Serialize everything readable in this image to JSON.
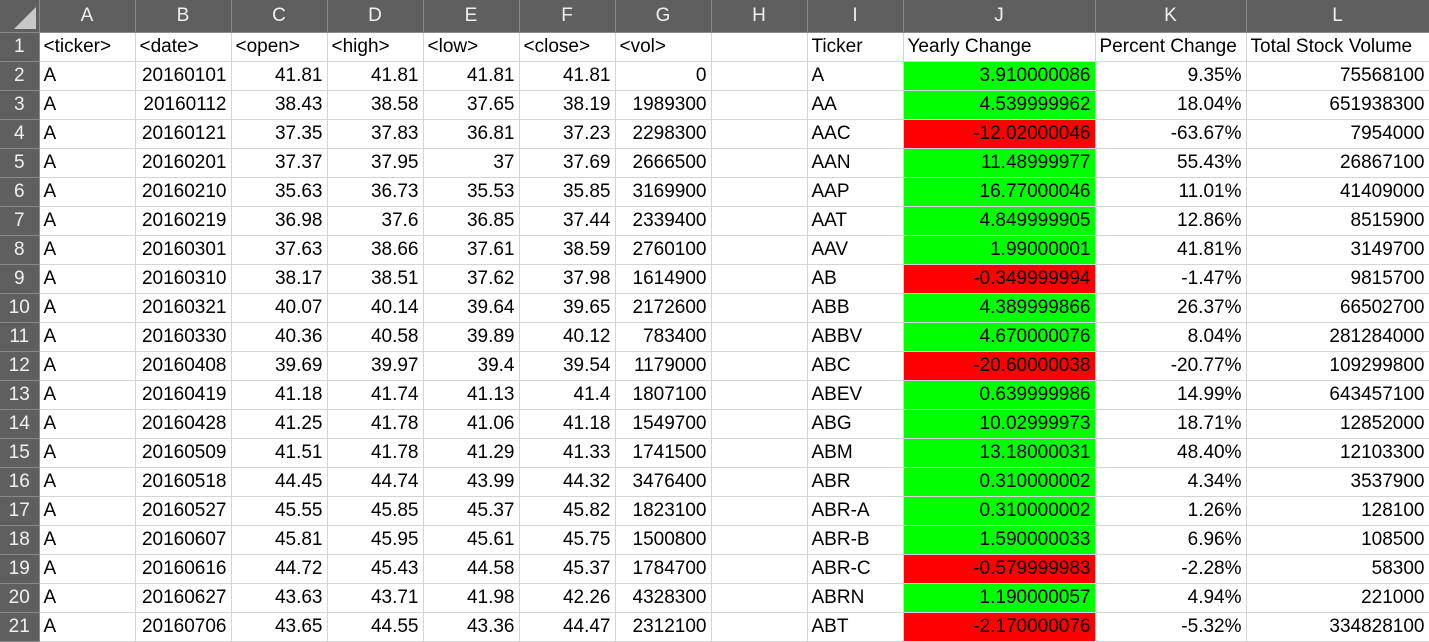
{
  "columns": [
    "A",
    "B",
    "C",
    "D",
    "E",
    "F",
    "G",
    "H",
    "I",
    "J",
    "K",
    "L"
  ],
  "header_row": {
    "row_number": "1",
    "cells": [
      "<ticker>",
      "<date>",
      "<open>",
      "<high>",
      "<low>",
      "<close>",
      "<vol>",
      "",
      "Ticker",
      "Yearly Change",
      "Percent Change",
      "Total Stock Volume"
    ]
  },
  "colors": {
    "positive_change": "#00ff00",
    "negative_change": "#ff0000",
    "header_background": "#5f5f5f"
  },
  "rows": [
    {
      "row_number": "2",
      "cells": [
        "A",
        "20160101",
        "41.81",
        "41.81",
        "41.81",
        "41.81",
        "0",
        "",
        "A",
        "3.910000086",
        "9.35%",
        "75568100"
      ],
      "change_sign": "positive"
    },
    {
      "row_number": "3",
      "cells": [
        "A",
        "20160112",
        "38.43",
        "38.58",
        "37.65",
        "38.19",
        "1989300",
        "",
        "AA",
        "4.539999962",
        "18.04%",
        "651938300"
      ],
      "change_sign": "positive"
    },
    {
      "row_number": "4",
      "cells": [
        "A",
        "20160121",
        "37.35",
        "37.83",
        "36.81",
        "37.23",
        "2298300",
        "",
        "AAC",
        "-12.02000046",
        "-63.67%",
        "7954000"
      ],
      "change_sign": "negative"
    },
    {
      "row_number": "5",
      "cells": [
        "A",
        "20160201",
        "37.37",
        "37.95",
        "37",
        "37.69",
        "2666500",
        "",
        "AAN",
        "11.48999977",
        "55.43%",
        "26867100"
      ],
      "change_sign": "positive"
    },
    {
      "row_number": "6",
      "cells": [
        "A",
        "20160210",
        "35.63",
        "36.73",
        "35.53",
        "35.85",
        "3169900",
        "",
        "AAP",
        "16.77000046",
        "11.01%",
        "41409000"
      ],
      "change_sign": "positive"
    },
    {
      "row_number": "7",
      "cells": [
        "A",
        "20160219",
        "36.98",
        "37.6",
        "36.85",
        "37.44",
        "2339400",
        "",
        "AAT",
        "4.849999905",
        "12.86%",
        "8515900"
      ],
      "change_sign": "positive"
    },
    {
      "row_number": "8",
      "cells": [
        "A",
        "20160301",
        "37.63",
        "38.66",
        "37.61",
        "38.59",
        "2760100",
        "",
        "AAV",
        "1.99000001",
        "41.81%",
        "3149700"
      ],
      "change_sign": "positive"
    },
    {
      "row_number": "9",
      "cells": [
        "A",
        "20160310",
        "38.17",
        "38.51",
        "37.62",
        "37.98",
        "1614900",
        "",
        "AB",
        "-0.349999994",
        "-1.47%",
        "9815700"
      ],
      "change_sign": "negative"
    },
    {
      "row_number": "10",
      "cells": [
        "A",
        "20160321",
        "40.07",
        "40.14",
        "39.64",
        "39.65",
        "2172600",
        "",
        "ABB",
        "4.389999866",
        "26.37%",
        "66502700"
      ],
      "change_sign": "positive"
    },
    {
      "row_number": "11",
      "cells": [
        "A",
        "20160330",
        "40.36",
        "40.58",
        "39.89",
        "40.12",
        "783400",
        "",
        "ABBV",
        "4.670000076",
        "8.04%",
        "281284000"
      ],
      "change_sign": "positive"
    },
    {
      "row_number": "12",
      "cells": [
        "A",
        "20160408",
        "39.69",
        "39.97",
        "39.4",
        "39.54",
        "1179000",
        "",
        "ABC",
        "-20.60000038",
        "-20.77%",
        "109299800"
      ],
      "change_sign": "negative"
    },
    {
      "row_number": "13",
      "cells": [
        "A",
        "20160419",
        "41.18",
        "41.74",
        "41.13",
        "41.4",
        "1807100",
        "",
        "ABEV",
        "0.639999986",
        "14.99%",
        "643457100"
      ],
      "change_sign": "positive"
    },
    {
      "row_number": "14",
      "cells": [
        "A",
        "20160428",
        "41.25",
        "41.78",
        "41.06",
        "41.18",
        "1549700",
        "",
        "ABG",
        "10.02999973",
        "18.71%",
        "12852000"
      ],
      "change_sign": "positive"
    },
    {
      "row_number": "15",
      "cells": [
        "A",
        "20160509",
        "41.51",
        "41.78",
        "41.29",
        "41.33",
        "1741500",
        "",
        "ABM",
        "13.18000031",
        "48.40%",
        "12103300"
      ],
      "change_sign": "positive"
    },
    {
      "row_number": "16",
      "cells": [
        "A",
        "20160518",
        "44.45",
        "44.74",
        "43.99",
        "44.32",
        "3476400",
        "",
        "ABR",
        "0.310000002",
        "4.34%",
        "3537900"
      ],
      "change_sign": "positive"
    },
    {
      "row_number": "17",
      "cells": [
        "A",
        "20160527",
        "45.55",
        "45.85",
        "45.37",
        "45.82",
        "1823100",
        "",
        "ABR-A",
        "0.310000002",
        "1.26%",
        "128100"
      ],
      "change_sign": "positive"
    },
    {
      "row_number": "18",
      "cells": [
        "A",
        "20160607",
        "45.81",
        "45.95",
        "45.61",
        "45.75",
        "1500800",
        "",
        "ABR-B",
        "1.590000033",
        "6.96%",
        "108500"
      ],
      "change_sign": "positive"
    },
    {
      "row_number": "19",
      "cells": [
        "A",
        "20160616",
        "44.72",
        "45.43",
        "44.58",
        "45.37",
        "1784700",
        "",
        "ABR-C",
        "-0.579999983",
        "-2.28%",
        "58300"
      ],
      "change_sign": "negative"
    },
    {
      "row_number": "20",
      "cells": [
        "A",
        "20160627",
        "43.63",
        "43.71",
        "41.98",
        "42.26",
        "4328300",
        "",
        "ABRN",
        "1.190000057",
        "4.94%",
        "221000"
      ],
      "change_sign": "positive"
    },
    {
      "row_number": "21",
      "cells": [
        "A",
        "20160706",
        "43.65",
        "44.55",
        "43.36",
        "44.47",
        "2312100",
        "",
        "ABT",
        "-2.170000076",
        "-5.32%",
        "334828100"
      ],
      "change_sign": "negative"
    }
  ]
}
